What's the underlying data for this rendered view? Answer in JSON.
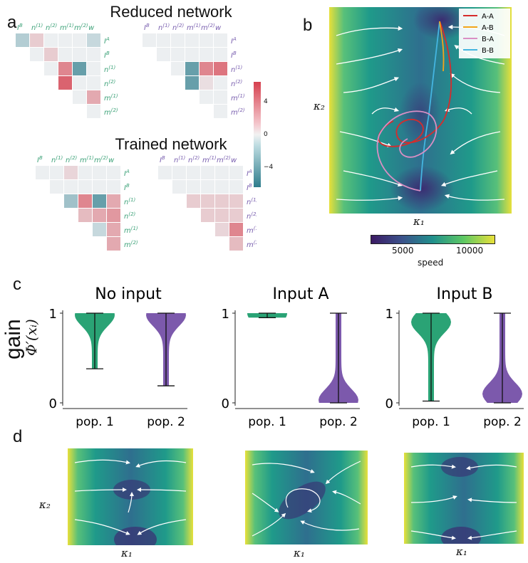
{
  "panel_a": {
    "letter": "a",
    "title_reduced": "Reduced network",
    "title_trained": "Trained network",
    "col_labels_left": [
      "I^B",
      "n^(1)",
      "n^(2)",
      "m^(1)",
      "m^(2)",
      "w"
    ],
    "col_labels_right": [
      "I^B",
      "n^(1)",
      "n^(2)",
      "m^(1)",
      "m^(2)",
      "w"
    ],
    "row_labels_left": [
      "I^A",
      "I^B",
      "n^(1)",
      "n^(2)",
      "m^(1)",
      "m^(2)"
    ],
    "row_labels_right": [
      "I^A",
      "I^B",
      "n^(1)",
      "n^(2)",
      "m^(1)",
      "m^(2)"
    ],
    "colorbar_ticks": [
      "4",
      "0",
      "−4"
    ],
    "matrices": {
      "reduced_left": [
        [
          -0.3,
          0.2,
          0,
          0,
          0,
          -0.2
        ],
        [
          0,
          0,
          0.2,
          0,
          0,
          0
        ],
        [
          0,
          0,
          0,
          0.6,
          -0.7,
          0
        ],
        [
          0,
          0,
          0,
          0.8,
          0,
          0
        ],
        [
          0,
          0,
          0,
          0,
          0,
          0.4
        ],
        [
          0,
          0,
          0,
          0,
          0,
          0
        ]
      ],
      "reduced_right": [
        [
          0,
          0,
          0,
          0,
          0,
          0
        ],
        [
          0,
          0,
          0,
          0,
          0,
          0
        ],
        [
          0,
          0,
          0,
          -0.7,
          0.6,
          0.7
        ],
        [
          0,
          0,
          0,
          -0.7,
          0.1,
          0
        ],
        [
          0,
          0,
          0,
          0,
          0,
          0
        ],
        [
          0,
          0,
          0,
          0,
          0,
          0
        ]
      ],
      "trained_left": [
        [
          0,
          0,
          0.15,
          0,
          0,
          0
        ],
        [
          0,
          0,
          0,
          0,
          0,
          0
        ],
        [
          0,
          0,
          -0.4,
          0.6,
          -0.7,
          0.4
        ],
        [
          0,
          0,
          0,
          0.3,
          0.4,
          0.5
        ],
        [
          0,
          0,
          0,
          0,
          -0.2,
          0.4
        ],
        [
          0,
          0,
          0,
          0,
          0,
          0.4
        ]
      ],
      "trained_right": [
        [
          0,
          0,
          0,
          0,
          0,
          0
        ],
        [
          0,
          0,
          0,
          0,
          0,
          0
        ],
        [
          0,
          0,
          0.2,
          0.2,
          0.2,
          0.2
        ],
        [
          0,
          0,
          0,
          0.2,
          0.2,
          0.2
        ],
        [
          0,
          0,
          0,
          0,
          0.15,
          0.6
        ],
        [
          0,
          0,
          0,
          0,
          0,
          0.3
        ]
      ]
    },
    "colors": {
      "pos": "#d6404e",
      "neg": "#2e7c8c",
      "neutral": "#eceff1",
      "green_label": "#3fa37a",
      "purple_label": "#7b61b0"
    }
  },
  "panel_b": {
    "letter": "b",
    "xlabel": "κ₁",
    "ylabel": "κ₂",
    "legend": [
      {
        "name": "A-A",
        "color": "#d62c2c"
      },
      {
        "name": "A-B",
        "color": "#f2a51a"
      },
      {
        "name": "B-A",
        "color": "#d98fc4"
      },
      {
        "name": "B-B",
        "color": "#44b5e0"
      }
    ],
    "colorbar_label": "speed",
    "colorbar_ticks": [
      "5000",
      "10000"
    ]
  },
  "panel_c": {
    "letter": "c",
    "ylabel": "gain",
    "ylabel_math": "Φ′(xᵢ)",
    "yticks": [
      "0",
      "1"
    ],
    "colors": {
      "pop1": "#1f9e6e",
      "pop2": "#7550a8"
    },
    "chart_data": [
      {
        "type": "violin",
        "title": "No input",
        "categories": [
          "pop. 1",
          "pop. 2"
        ],
        "ylim": [
          0,
          1
        ],
        "series": [
          {
            "name": "pop. 1",
            "min": 0.38,
            "max": 1.0,
            "mode": 0.98
          },
          {
            "name": "pop. 2",
            "min": 0.19,
            "max": 1.0,
            "mode": 0.98
          }
        ]
      },
      {
        "type": "violin",
        "title": "Input A",
        "categories": [
          "pop. 1",
          "pop. 2"
        ],
        "ylim": [
          0,
          1
        ],
        "series": [
          {
            "name": "pop. 1",
            "min": 0.95,
            "max": 1.0,
            "mode": 1.0
          },
          {
            "name": "pop. 2",
            "min": 0.0,
            "max": 1.0,
            "mode": 0.03
          }
        ]
      },
      {
        "type": "violin",
        "title": "Input B",
        "categories": [
          "pop. 1",
          "pop. 2"
        ],
        "ylim": [
          0,
          1
        ],
        "series": [
          {
            "name": "pop. 1",
            "min": 0.02,
            "max": 1.0,
            "mode": 0.9
          },
          {
            "name": "pop. 2",
            "min": 0.0,
            "max": 1.0,
            "mode": 0.1
          }
        ]
      }
    ]
  },
  "panel_d": {
    "letter": "d",
    "xlabel": "κ₁",
    "ylabel": "κ₂"
  }
}
